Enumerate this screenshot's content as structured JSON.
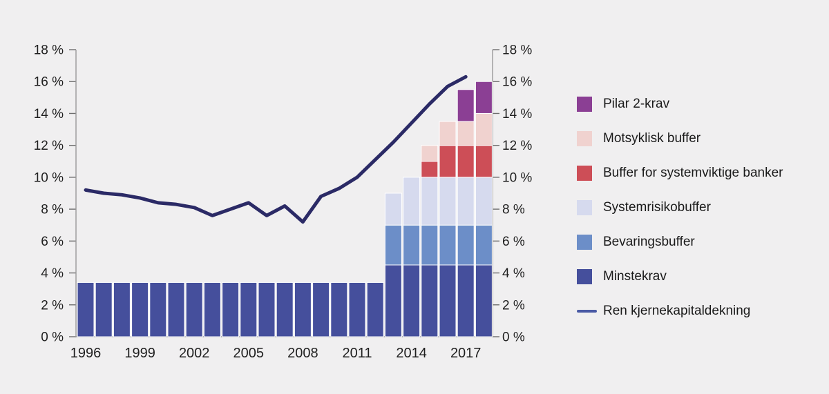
{
  "background_color": "#f0eff0",
  "axis": {
    "color": "#999999",
    "tick_color": "#6e6e6e",
    "label_color": "#1f1f1f",
    "ytick_labels": [
      "0 %",
      "2 %",
      "4 %",
      "6 %",
      "8 %",
      "10 %",
      "12 %",
      "14 %",
      "16 %",
      "18 %"
    ],
    "xtick_labels": [
      "1996",
      "1999",
      "2002",
      "2005",
      "2008",
      "2011",
      "2014",
      "2017"
    ]
  },
  "chart_data": {
    "type": "bar",
    "stacked": true,
    "title": "",
    "xlabel": "",
    "ylabel": "",
    "ylim": [
      0,
      18
    ],
    "ytick_step": 2,
    "ytick_suffix": " %",
    "grid": false,
    "legend_position": "right",
    "categories": [
      1996,
      1997,
      1998,
      1999,
      2000,
      2001,
      2002,
      2003,
      2004,
      2005,
      2006,
      2007,
      2008,
      2009,
      2010,
      2011,
      2012,
      2013,
      2014,
      2015,
      2016,
      2017,
      2018
    ],
    "xticks": [
      1996,
      1999,
      2002,
      2005,
      2008,
      2011,
      2014,
      2017
    ],
    "series": [
      {
        "name": "Minstekrav",
        "color": "#454f9c",
        "values": [
          3.4,
          3.4,
          3.4,
          3.4,
          3.4,
          3.4,
          3.4,
          3.4,
          3.4,
          3.4,
          3.4,
          3.4,
          3.4,
          3.4,
          3.4,
          3.4,
          3.4,
          4.5,
          4.5,
          4.5,
          4.5,
          4.5,
          4.5
        ]
      },
      {
        "name": "Bevaringsbuffer",
        "color": "#6c8ec8",
        "values": [
          0,
          0,
          0,
          0,
          0,
          0,
          0,
          0,
          0,
          0,
          0,
          0,
          0,
          0,
          0,
          0,
          0,
          2.5,
          2.5,
          2.5,
          2.5,
          2.5,
          2.5
        ]
      },
      {
        "name": "Systemrisikobuffer",
        "color": "#d6daee",
        "values": [
          0,
          0,
          0,
          0,
          0,
          0,
          0,
          0,
          0,
          0,
          0,
          0,
          0,
          0,
          0,
          0,
          0,
          2,
          3,
          3,
          3,
          3,
          3
        ]
      },
      {
        "name": "Buffer for systemviktige banker",
        "color": "#cd4e57",
        "values": [
          0,
          0,
          0,
          0,
          0,
          0,
          0,
          0,
          0,
          0,
          0,
          0,
          0,
          0,
          0,
          0,
          0,
          0,
          0,
          1,
          2,
          2,
          2
        ]
      },
      {
        "name": "Motsyklisk buffer",
        "color": "#f0d2cf",
        "values": [
          0,
          0,
          0,
          0,
          0,
          0,
          0,
          0,
          0,
          0,
          0,
          0,
          0,
          0,
          0,
          0,
          0,
          0,
          0,
          1,
          1.5,
          1.5,
          2
        ]
      },
      {
        "name": "Pilar 2-krav",
        "color": "#8b3f94",
        "values": [
          0,
          0,
          0,
          0,
          0,
          0,
          0,
          0,
          0,
          0,
          0,
          0,
          0,
          0,
          0,
          0,
          0,
          0,
          0,
          0,
          0,
          2,
          2
        ]
      }
    ],
    "line_series": {
      "name": "Ren kjernekapitaldekning",
      "color": "#2b2a66",
      "x": [
        1996,
        1997,
        1998,
        1999,
        2000,
        2001,
        2002,
        2003,
        2004,
        2005,
        2006,
        2007,
        2008,
        2009,
        2010,
        2011,
        2012,
        2013,
        2014,
        2015,
        2016,
        2017
      ],
      "values": [
        9.2,
        9.0,
        8.9,
        8.7,
        8.4,
        8.3,
        8.1,
        7.6,
        8.0,
        8.4,
        7.6,
        8.2,
        7.2,
        8.8,
        9.3,
        10.0,
        11.1,
        12.2,
        13.4,
        14.6,
        15.7,
        16.3
      ]
    }
  },
  "legend": {
    "items": [
      {
        "label": "Pilar 2-krav",
        "color": "#8b3f94",
        "type": "box"
      },
      {
        "label": "Motsyklisk buffer",
        "color": "#f0d2cf",
        "type": "box"
      },
      {
        "label": "Buffer for systemviktige banker",
        "color": "#cd4e57",
        "type": "box"
      },
      {
        "label": "Systemrisikobuffer",
        "color": "#d6daee",
        "type": "box"
      },
      {
        "label": "Bevaringsbuffer",
        "color": "#6c8ec8",
        "type": "box"
      },
      {
        "label": "Minstekrav",
        "color": "#454f9c",
        "type": "box"
      },
      {
        "label": "Ren kjernekapitaldekning",
        "color": "#4a5aa5",
        "type": "line"
      }
    ]
  }
}
